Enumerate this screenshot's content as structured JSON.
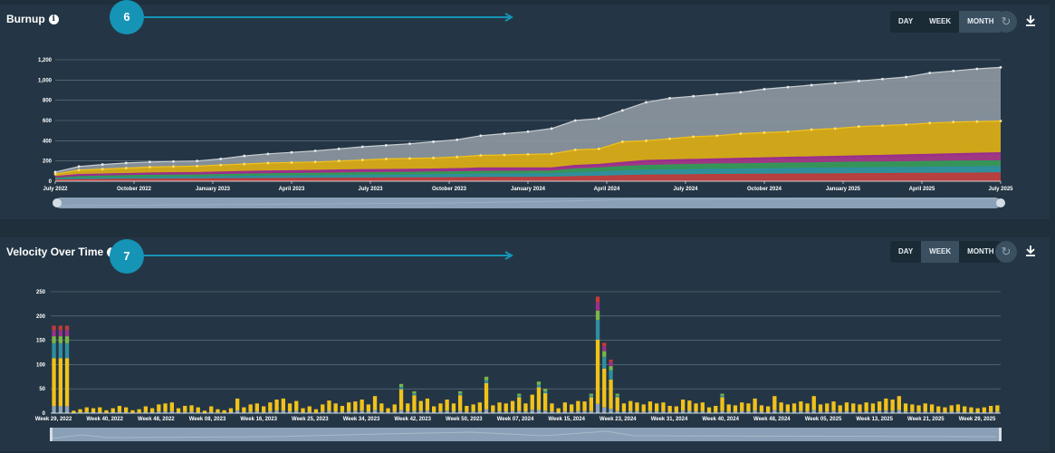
{
  "burnup": {
    "title": "Burnup",
    "step": "6",
    "toggle": [
      "DAY",
      "WEEK",
      "MONTH"
    ],
    "active_toggle": "MONTH"
  },
  "velocity": {
    "title": "Velocity Over Time",
    "step": "7",
    "toggle": [
      "DAY",
      "WEEK",
      "MONTH"
    ],
    "active_toggle": "WEEK"
  },
  "icons": {
    "info": "info-icon",
    "refresh": "refresh-icon",
    "download": "download-icon",
    "arrow": "arrow-right-icon"
  },
  "colors": {
    "accent": "#1594b6",
    "gray": "#8c96a0",
    "gold": "#d6a80f",
    "purple": "#9a2f8c",
    "green": "#2f9c55",
    "teal": "#2f8ea0",
    "red": "#c23a38",
    "lightgreen": "#7ab648",
    "yellow": "#f2c21a",
    "steel": "#8aa4bc"
  },
  "chart_data": [
    {
      "type": "area",
      "title": "Burnup",
      "x_start": "July 2022",
      "x_end": "July 2025",
      "x_tick_labels": [
        "July 2022",
        "October 2022",
        "January 2023",
        "April 2023",
        "July 2023",
        "October 2023",
        "January 2024",
        "April 2024",
        "July 2024",
        "October 2024",
        "January 2025",
        "April 2025",
        "July 2025"
      ],
      "y_ticks": [
        0,
        200,
        400,
        600,
        800,
        1000,
        1200
      ],
      "ylim": [
        0,
        1200
      ],
      "grid": true,
      "series": [
        {
          "color": "#8c96a0",
          "values": [
            90,
            145,
            165,
            180,
            190,
            195,
            200,
            220,
            250,
            270,
            285,
            300,
            320,
            340,
            355,
            370,
            390,
            410,
            450,
            470,
            490,
            520,
            600,
            620,
            700,
            780,
            820,
            840,
            860,
            880,
            910,
            930,
            950,
            970,
            990,
            1010,
            1030,
            1070,
            1090,
            1110,
            1125
          ]
        },
        {
          "color": "#d6a80f",
          "values": [
            70,
            110,
            120,
            130,
            140,
            145,
            150,
            160,
            170,
            180,
            185,
            190,
            200,
            210,
            220,
            225,
            230,
            240,
            255,
            260,
            265,
            270,
            310,
            320,
            390,
            400,
            420,
            440,
            450,
            470,
            480,
            490,
            510,
            520,
            540,
            550,
            560,
            575,
            585,
            590,
            595
          ]
        },
        {
          "color": "#9a2f8c",
          "values": [
            40,
            60,
            65,
            70,
            75,
            78,
            80,
            85,
            90,
            95,
            98,
            100,
            105,
            108,
            110,
            112,
            115,
            118,
            125,
            125,
            125,
            125,
            150,
            160,
            180,
            200,
            205,
            210,
            215,
            220,
            225,
            230,
            235,
            240,
            245,
            250,
            255,
            260,
            265,
            270,
            275
          ]
        },
        {
          "color": "#2f9c55",
          "values": [
            30,
            45,
            50,
            55,
            58,
            60,
            62,
            65,
            70,
            73,
            75,
            78,
            80,
            83,
            85,
            87,
            90,
            92,
            96,
            97,
            98,
            100,
            120,
            130,
            145,
            155,
            160,
            165,
            170,
            172,
            175,
            178,
            180,
            185,
            188,
            190,
            192,
            195,
            198,
            200,
            200
          ]
        },
        {
          "color": "#2f8ea0",
          "values": [
            20,
            30,
            32,
            35,
            38,
            40,
            42,
            45,
            48,
            50,
            52,
            54,
            56,
            58,
            60,
            62,
            64,
            66,
            70,
            71,
            72,
            74,
            85,
            90,
            100,
            108,
            112,
            115,
            118,
            120,
            122,
            125,
            128,
            130,
            132,
            134,
            136,
            138,
            140,
            142,
            145
          ]
        },
        {
          "color": "#c23a38",
          "values": [
            10,
            15,
            17,
            19,
            20,
            21,
            22,
            24,
            25,
            26,
            27,
            28,
            29,
            30,
            31,
            32,
            33,
            34,
            36,
            37,
            38,
            39,
            45,
            48,
            55,
            60,
            62,
            64,
            66,
            67,
            68,
            70,
            71,
            72,
            74,
            75,
            76,
            78,
            79,
            80,
            82
          ]
        }
      ]
    },
    {
      "type": "bar",
      "title": "Velocity Over Time",
      "x_tick_labels": [
        "Week 29, 2022",
        "Week 40, 2022",
        "Week 48, 2022",
        "Week 08, 2023",
        "Week 16, 2023",
        "Week 25, 2023",
        "Week 34, 2023",
        "Week 42, 2023",
        "Week 50, 2023",
        "Week 07, 2024",
        "Week 15, 2024",
        "Week 23, 2024",
        "Week 31, 2024",
        "Week 40, 2024",
        "Week 48, 2024",
        "Week 05, 2025",
        "Week 13, 2025",
        "Week 21, 2025",
        "Week 29, 2025"
      ],
      "y_ticks": [
        0,
        50,
        100,
        150,
        200,
        250
      ],
      "ylim": [
        0,
        250
      ],
      "grid": true,
      "stacked": true,
      "series_colors": [
        "#8aa4bc",
        "#f2c21a",
        "#2f8ea0",
        "#7ab648",
        "#9a2f8c",
        "#c23a38"
      ],
      "peaks": [
        {
          "week": "Week 29, 2022",
          "totals": [
            180,
            180,
            180
          ]
        },
        {
          "week": "Week 23, 2024",
          "totals": [
            240,
            145,
            110
          ]
        }
      ],
      "values": [
        180,
        180,
        180,
        5,
        8,
        12,
        10,
        12,
        6,
        10,
        15,
        12,
        6,
        8,
        14,
        10,
        18,
        20,
        22,
        10,
        15,
        16,
        12,
        5,
        14,
        8,
        6,
        10,
        30,
        12,
        18,
        20,
        14,
        22,
        28,
        30,
        20,
        25,
        10,
        14,
        8,
        18,
        26,
        20,
        15,
        22,
        24,
        28,
        18,
        35,
        20,
        10,
        18,
        60,
        20,
        45,
        25,
        30,
        14,
        20,
        28,
        20,
        45,
        15,
        18,
        22,
        75,
        16,
        22,
        20,
        25,
        40,
        20,
        38,
        65,
        50,
        20,
        10,
        22,
        18,
        25,
        24,
        40,
        240,
        145,
        110,
        40,
        20,
        25,
        22,
        18,
        24,
        20,
        22,
        15,
        14,
        28,
        26,
        20,
        22,
        12,
        15,
        40,
        18,
        16,
        22,
        20,
        30,
        16,
        14,
        35,
        22,
        18,
        20,
        24,
        20,
        35,
        18,
        20,
        24,
        16,
        22,
        20,
        18,
        22,
        20,
        24,
        30,
        28,
        35,
        20,
        18,
        16,
        20,
        18,
        14,
        12,
        16,
        18,
        14,
        12,
        10,
        12,
        15,
        16
      ]
    }
  ]
}
